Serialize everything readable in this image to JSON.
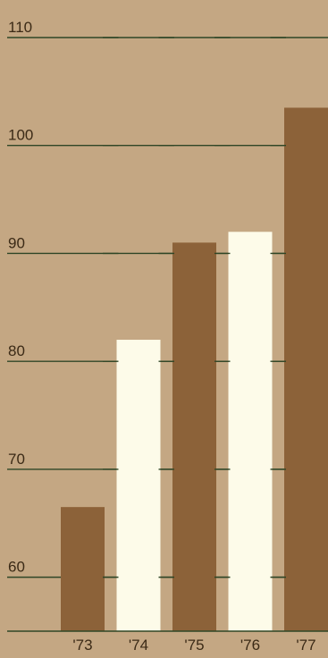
{
  "chart_data": {
    "type": "bar",
    "categories": [
      "'73",
      "'74",
      "'75",
      "'76",
      "'77"
    ],
    "values": [
      66.5,
      82,
      91,
      92,
      103.5
    ],
    "ylim": [
      55,
      110
    ],
    "y_ticks": [
      60,
      70,
      80,
      90,
      100,
      110
    ],
    "grid": true,
    "bar_colors": [
      "#8c6239",
      "#fdfbe9",
      "#8c6239",
      "#fdfbe9",
      "#8c6239"
    ],
    "background_color": "#c4a783",
    "gridline_color": "#2f4626"
  }
}
